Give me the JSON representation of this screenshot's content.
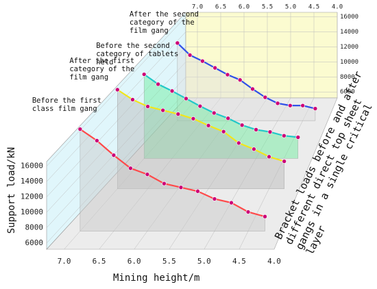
{
  "chart_data": {
    "type": "line3d",
    "xlabel": "Mining height/m",
    "ylabel": "Support load/kN",
    "zlabel": "Bracket loads before and after different direct top sheet gangs in a single critical layer",
    "x": [
      7.0,
      6.75,
      6.5,
      6.25,
      6.0,
      5.75,
      5.5,
      5.25,
      5.0,
      4.75,
      4.5,
      4.25
    ],
    "xlim": [
      7.25,
      4.0
    ],
    "ylim": [
      5200,
      16600
    ],
    "xticks": [
      {
        "value": 7,
        "label": "7.0"
      },
      6.5,
      {
        "value": 6,
        "label": "6.0"
      },
      5.5,
      {
        "value": 5,
        "label": "5.0"
      },
      4.5,
      {
        "value": 4,
        "label": "4.0"
      }
    ],
    "yticks": [
      6000,
      8000,
      10000,
      12000,
      14000,
      16000
    ],
    "marker_color": "#cc0077",
    "series": [
      {
        "name": "Before the first class film gang",
        "color": "#ff4a4a",
        "panel": "#c8c8c8",
        "values": [
          18500,
          17000,
          15100,
          13400,
          12600,
          11400,
          10900,
          10400,
          9400,
          8900,
          7700,
          7100
        ]
      },
      {
        "name": "After the first category of the film gang",
        "color": "#f2e61a",
        "panel": "#b8b8b8",
        "values": [
          18200,
          16900,
          16000,
          15500,
          15000,
          14400,
          13500,
          12700,
          11200,
          10400,
          9400,
          8800
        ]
      },
      {
        "name": "Before the second category of tablets held",
        "color": "#22c8c8",
        "panel": "#66ee99",
        "values": [
          16300,
          15000,
          14100,
          13100,
          12100,
          11200,
          10500,
          9600,
          9000,
          8700,
          8200,
          8000
        ]
      },
      {
        "name": "After the second category of the film gang",
        "color": "#3050e8",
        "panel": "#ddd",
        "values": [
          15500,
          13900,
          13100,
          12200,
          11300,
          10600,
          9400,
          8300,
          7500,
          7200,
          7200,
          6800
        ]
      }
    ]
  }
}
